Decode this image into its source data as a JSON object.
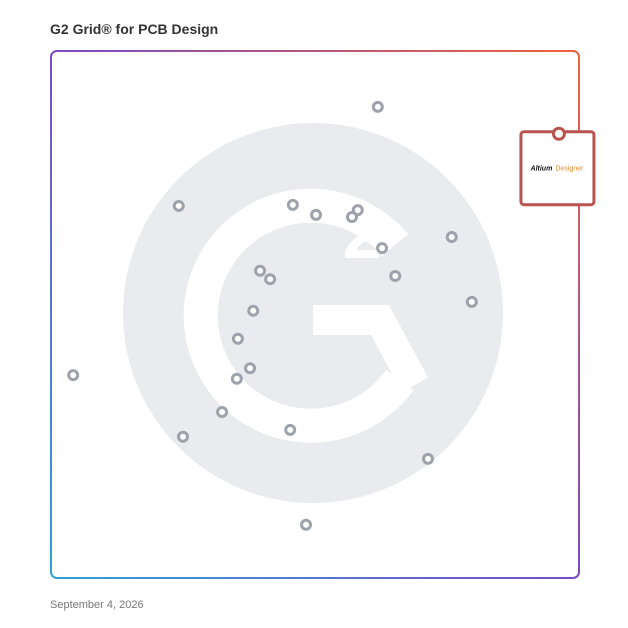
{
  "chart_data": {
    "type": "scatter",
    "title": "G2 Grid® for PCB Design",
    "footer": "September 4, 2026",
    "xlim": [
      0,
      100
    ],
    "ylim": [
      0,
      100
    ],
    "point_color": "#9ea2ab",
    "x": [
      61.9,
      24.2,
      45.8,
      50.2,
      58.1,
      57.0,
      62.7,
      75.9,
      39.6,
      41.5,
      65.2,
      79.7,
      38.3,
      35.4,
      37.7,
      35.2,
      4.2,
      32.4,
      25.0,
      45.3,
      71.4,
      48.3
    ],
    "y": [
      89.4,
      70.6,
      70.8,
      68.9,
      69.8,
      68.5,
      62.6,
      64.7,
      58.3,
      56.7,
      57.3,
      52.4,
      50.7,
      45.4,
      39.8,
      37.8,
      38.5,
      31.5,
      26.8,
      28.1,
      22.6,
      10.1
    ],
    "highlight": {
      "label_parts": [
        "Altium",
        "Designer"
      ],
      "x": 96.2,
      "y": 84.3,
      "color": "#b85450"
    }
  }
}
